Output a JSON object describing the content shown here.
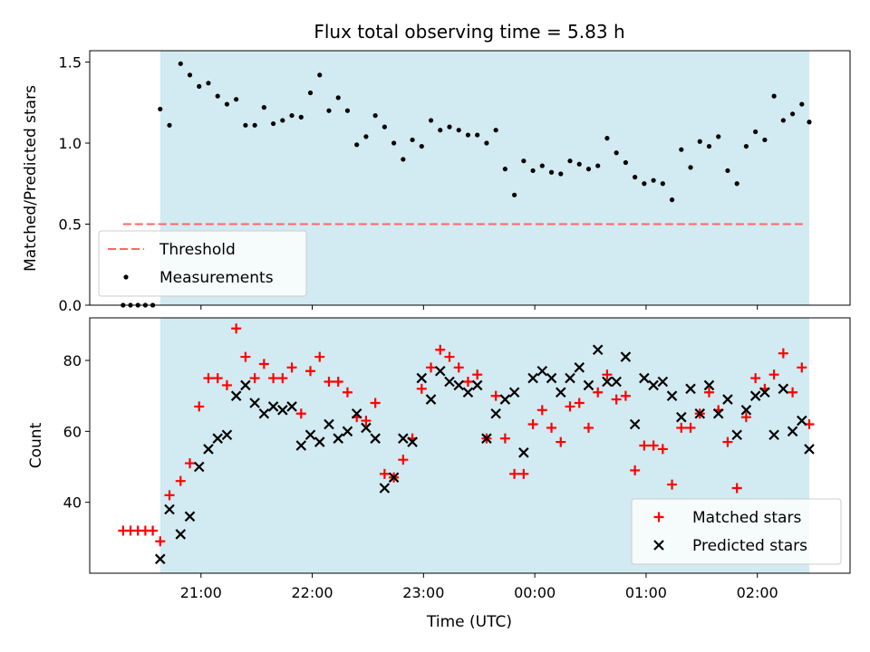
{
  "chart_data": {
    "type": "scatter",
    "title": "Flux total observing time = 5.83 h",
    "xlabel": "Time (UTC)",
    "x_ticks": [
      "21:00",
      "22:00",
      "23:00",
      "00:00",
      "01:00",
      "02:00"
    ],
    "x_tick_minutes": [
      0,
      60,
      120,
      180,
      240,
      300
    ],
    "xlim_minutes": [
      -60,
      350
    ],
    "observing_window_minutes": [
      -22,
      328
    ],
    "shade_color": "#add8e6",
    "panels": [
      {
        "id": "ratio",
        "ylabel": "Matched/Predicted stars",
        "ylim": [
          0,
          1.57
        ],
        "y_ticks": [
          0.0,
          0.5,
          1.0,
          1.5
        ],
        "y_tick_labels": [
          "0.0",
          "0.5",
          "1.0",
          "1.5"
        ],
        "legend_placement": "lower-left",
        "threshold": {
          "name": "Threshold",
          "value": 0.5,
          "x_range_minutes": [
            -42,
            326
          ],
          "color": "#ff6666"
        },
        "series": [
          {
            "name": "Measurements",
            "marker": "dot",
            "color": "#000000",
            "x": [
              -42,
              -38,
              -34,
              -30,
              -26,
              -22,
              -17,
              -11,
              -6,
              -1,
              4,
              9,
              14,
              19,
              24,
              29,
              34,
              39,
              44,
              49,
              54,
              59,
              64,
              69,
              74,
              79,
              84,
              89,
              94,
              99,
              104,
              109,
              114,
              119,
              124,
              129,
              134,
              139,
              144,
              149,
              154,
              159,
              164,
              169,
              174,
              179,
              184,
              189,
              194,
              199,
              204,
              209,
              214,
              219,
              224,
              229,
              234,
              239,
              244,
              249,
              254,
              259,
              264,
              269,
              274,
              279,
              284,
              289,
              294,
              299,
              304,
              309,
              314,
              319,
              324,
              328
            ],
            "y": [
              0,
              0,
              0,
              0,
              0,
              1.21,
              1.11,
              1.49,
              1.42,
              1.35,
              1.37,
              1.29,
              1.24,
              1.27,
              1.11,
              1.11,
              1.22,
              1.12,
              1.14,
              1.17,
              1.16,
              1.31,
              1.42,
              1.2,
              1.28,
              1.2,
              0.99,
              1.04,
              1.17,
              1.1,
              1.0,
              0.9,
              1.02,
              0.98,
              1.14,
              1.08,
              1.1,
              1.08,
              1.05,
              1.05,
              1.0,
              1.08,
              0.84,
              0.68,
              0.89,
              0.83,
              0.86,
              0.82,
              0.81,
              0.89,
              0.87,
              0.84,
              0.86,
              1.03,
              0.94,
              0.88,
              0.79,
              0.75,
              0.77,
              0.75,
              0.65,
              0.96,
              0.85,
              1.01,
              0.98,
              1.04,
              0.83,
              0.75,
              0.98,
              1.07,
              1.02,
              1.29,
              1.14,
              1.18,
              1.24,
              1.13
            ]
          }
        ]
      },
      {
        "id": "count",
        "ylabel": "Count",
        "ylim": [
          20,
          92
        ],
        "y_ticks": [
          40,
          60,
          80
        ],
        "y_tick_labels": [
          "40",
          "60",
          "80"
        ],
        "legend_placement": "lower-right",
        "series": [
          {
            "name": "Matched stars",
            "marker": "plus",
            "color": "#ff0000",
            "x": [
              -42,
              -38,
              -34,
              -30,
              -26,
              -22,
              -17,
              -11,
              -6,
              -1,
              4,
              9,
              14,
              19,
              24,
              29,
              34,
              39,
              44,
              49,
              54,
              59,
              64,
              69,
              74,
              79,
              84,
              89,
              94,
              99,
              104,
              109,
              114,
              119,
              124,
              129,
              134,
              139,
              144,
              149,
              154,
              159,
              164,
              169,
              174,
              179,
              184,
              189,
              194,
              199,
              204,
              209,
              214,
              219,
              224,
              229,
              234,
              239,
              244,
              249,
              254,
              259,
              264,
              269,
              274,
              279,
              284,
              289,
              294,
              299,
              304,
              309,
              314,
              319,
              324,
              328
            ],
            "y": [
              32,
              32,
              32,
              32,
              32,
              29,
              42,
              46,
              51,
              67,
              75,
              75,
              73,
              89,
              81,
              75,
              79,
              75,
              75,
              78,
              65,
              77,
              81,
              74,
              74,
              71,
              64,
              63,
              68,
              48,
              47,
              52,
              58,
              72,
              78,
              83,
              81,
              78,
              74,
              76,
              58,
              70,
              58,
              48,
              48,
              62,
              66,
              61,
              57,
              67,
              68,
              61,
              71,
              76,
              69,
              70,
              49,
              56,
              56,
              55,
              45,
              61,
              61,
              65,
              71,
              66,
              57,
              44,
              64,
              75,
              72,
              76,
              82,
              71,
              78,
              62
            ]
          },
          {
            "name": "Predicted stars",
            "marker": "x",
            "color": "#000000",
            "x": [
              -22,
              -17,
              -11,
              -6,
              -1,
              4,
              9,
              14,
              19,
              24,
              29,
              34,
              39,
              44,
              49,
              54,
              59,
              64,
              69,
              74,
              79,
              84,
              89,
              94,
              99,
              104,
              109,
              114,
              119,
              124,
              129,
              134,
              139,
              144,
              149,
              154,
              159,
              164,
              169,
              174,
              179,
              184,
              189,
              194,
              199,
              204,
              209,
              214,
              219,
              224,
              229,
              234,
              239,
              244,
              249,
              254,
              259,
              264,
              269,
              274,
              279,
              284,
              289,
              294,
              299,
              304,
              309,
              314,
              319,
              324,
              328
            ],
            "y": [
              24,
              38,
              31,
              36,
              50,
              55,
              58,
              59,
              70,
              73,
              68,
              65,
              67,
              66,
              67,
              56,
              59,
              57,
              62,
              58,
              60,
              65,
              61,
              58,
              44,
              47,
              58,
              57,
              75,
              69,
              77,
              74,
              73,
              71,
              73,
              58,
              65,
              69,
              71,
              54,
              75,
              77,
              75,
              71,
              75,
              78,
              73,
              83,
              74,
              74,
              81,
              62,
              75,
              73,
              74,
              70,
              64,
              72,
              65,
              73,
              65,
              69,
              59,
              66,
              70,
              71,
              59,
              72,
              60,
              63,
              55
            ]
          }
        ]
      }
    ]
  }
}
